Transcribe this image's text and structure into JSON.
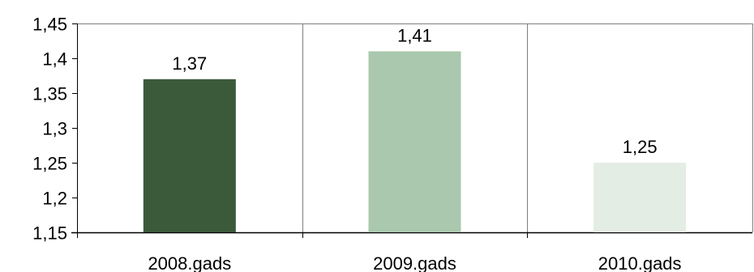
{
  "chart_data": {
    "type": "bar",
    "categories": [
      "2008.gads",
      "2009.gads",
      "2010.gads"
    ],
    "values": [
      1.37,
      1.41,
      1.25
    ],
    "data_labels": [
      "1,37",
      "1,41",
      "1,25"
    ],
    "bar_colors": [
      "#3A5A3A",
      "#A9C8AD",
      "#E4EDE4"
    ],
    "ylim": [
      1.15,
      1.45
    ],
    "y_ticks": [
      1.15,
      1.2,
      1.25,
      1.3,
      1.35,
      1.4,
      1.45
    ],
    "y_tick_labels": [
      "1,15",
      "1,2",
      "1,25",
      "1,3",
      "1,35",
      "1,4",
      "1,45"
    ],
    "grid": "vertical category separators",
    "legend": "none"
  }
}
